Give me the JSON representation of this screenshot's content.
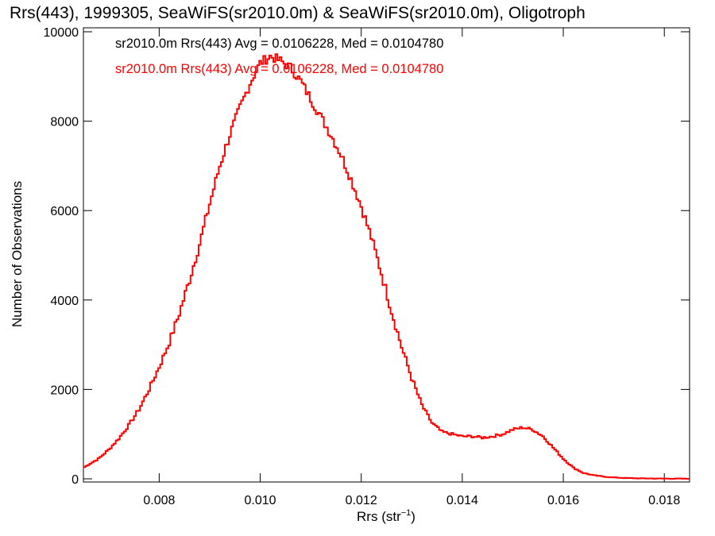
{
  "chart_data": {
    "type": "line",
    "title": "Rrs(443), 1999305, SeaWiFS(sr2010.0m) & SeaWiFS(sr2010.0m), Oligotroph",
    "xlabel": "Rrs (str",
    "xlabel_sup": "−1",
    "xlabel_suffix": ")",
    "ylabel": "Number of Observations",
    "xlim": [
      0.0065,
      0.0185
    ],
    "ylim": [
      0,
      10000
    ],
    "x_ticks": [
      0.008,
      0.01,
      0.012,
      0.014,
      0.016,
      0.018
    ],
    "x_tick_labels": [
      "0.008",
      "0.010",
      "0.012",
      "0.014",
      "0.016",
      "0.018"
    ],
    "y_ticks": [
      0,
      2000,
      4000,
      6000,
      8000,
      10000
    ],
    "y_tick_labels": [
      "0",
      "2000",
      "4000",
      "6000",
      "8000",
      "10000"
    ],
    "grid": false,
    "annotations": [
      {
        "text": "sr2010.0m Rrs(443) Avg = 0.0106228, Med = 0.0104780",
        "color": "#000000"
      },
      {
        "text": "sr2010.0m Rrs(443) Avg = 0.0106228, Med = 0.0104780",
        "color": "#ff0000"
      }
    ],
    "series": [
      {
        "color": "#ff0000",
        "style": "step",
        "x": [
          0.0065,
          0.0068,
          0.007,
          0.0072,
          0.0074,
          0.0076,
          0.0078,
          0.008,
          0.0082,
          0.0084,
          0.0086,
          0.0088,
          0.009,
          0.0092,
          0.0094,
          0.0096,
          0.0098,
          0.01,
          0.0102,
          0.0104,
          0.0106,
          0.0108,
          0.011,
          0.0112,
          0.0114,
          0.0116,
          0.0118,
          0.012,
          0.0122,
          0.0124,
          0.0126,
          0.0128,
          0.013,
          0.0132,
          0.0134,
          0.0136,
          0.0138,
          0.014,
          0.0142,
          0.0144,
          0.0146,
          0.0148,
          0.015,
          0.0152,
          0.0154,
          0.0156,
          0.0158,
          0.016,
          0.0162,
          0.0164,
          0.0166,
          0.0168,
          0.017,
          0.0172,
          0.0175,
          0.018,
          0.0185
        ],
        "y": [
          250,
          450,
          650,
          900,
          1200,
          1550,
          2000,
          2500,
          3050,
          3700,
          4450,
          5250,
          6150,
          7000,
          7700,
          8300,
          8850,
          9300,
          9450,
          9350,
          9200,
          8900,
          8500,
          8100,
          7700,
          7250,
          6700,
          6100,
          5400,
          4600,
          3750,
          2950,
          2250,
          1650,
          1250,
          1050,
          1000,
          950,
          950,
          920,
          950,
          1000,
          1100,
          1150,
          1100,
          950,
          700,
          450,
          250,
          130,
          80,
          50,
          30,
          20,
          10,
          5,
          3
        ]
      }
    ]
  }
}
